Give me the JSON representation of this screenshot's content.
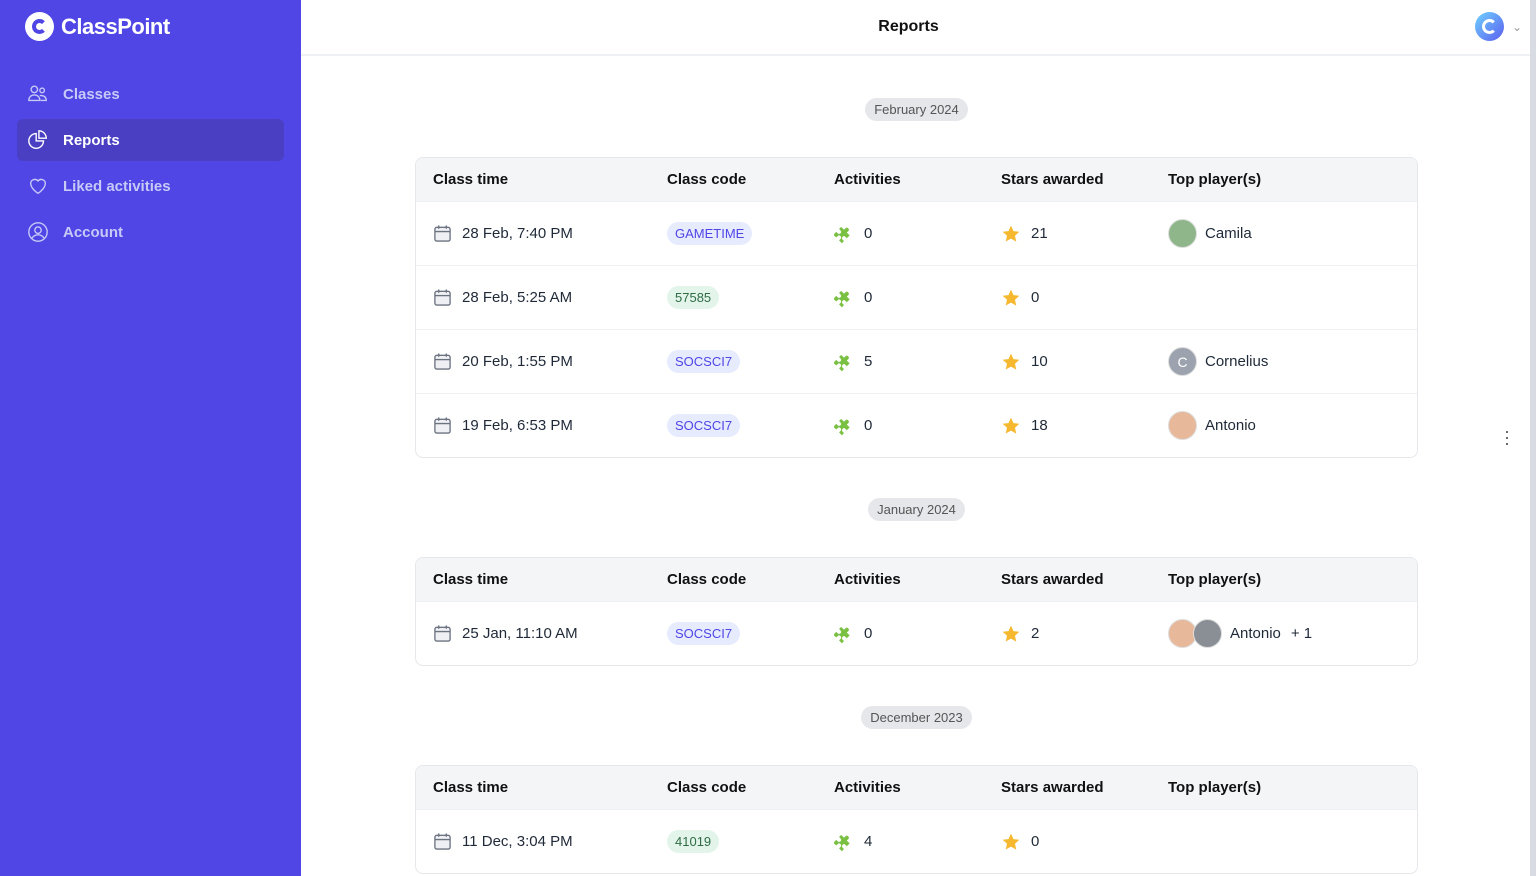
{
  "app": {
    "name": "ClassPoint"
  },
  "sidebar": {
    "items": [
      {
        "label": "Classes",
        "icon": "users-icon",
        "active": false
      },
      {
        "label": "Reports",
        "icon": "pie-chart-icon",
        "active": true
      },
      {
        "label": "Liked activities",
        "icon": "heart-icon",
        "active": false
      },
      {
        "label": "Account",
        "icon": "user-circle-icon",
        "active": false
      }
    ]
  },
  "header": {
    "title": "Reports"
  },
  "colors": {
    "sidebar": "#4f46e5",
    "accent": "#4f46e5",
    "puzzle": "#7ac143",
    "star": "#f5b82e"
  },
  "columns": [
    "Class time",
    "Class code",
    "Activities",
    "Stars awarded",
    "Top player(s)"
  ],
  "sections": [
    {
      "month": "February 2024",
      "rows": [
        {
          "time": "28 Feb, 7:40 PM",
          "code": "GAMETIME",
          "code_color": "blue",
          "activities": "0",
          "stars": "21",
          "players": [
            {
              "name": "Camila",
              "avatar": "photo",
              "color": "#8fb58a"
            }
          ],
          "extra": ""
        },
        {
          "time": "28 Feb, 5:25 AM",
          "code": "57585",
          "code_color": "green",
          "activities": "0",
          "stars": "0",
          "players": [],
          "extra": ""
        },
        {
          "time": "20 Feb, 1:55 PM",
          "code": "SOCSCI7",
          "code_color": "blue",
          "activities": "5",
          "stars": "10",
          "players": [
            {
              "name": "Cornelius",
              "avatar": "C",
              "color": "#9ca3af"
            }
          ],
          "extra": ""
        },
        {
          "time": "19 Feb, 6:53 PM",
          "code": "SOCSCI7",
          "code_color": "blue",
          "activities": "0",
          "stars": "18",
          "players": [
            {
              "name": "Antonio",
              "avatar": "photo",
              "color": "#e8b89a"
            }
          ],
          "extra": ""
        }
      ]
    },
    {
      "month": "January 2024",
      "rows": [
        {
          "time": "25 Jan, 11:10 AM",
          "code": "SOCSCI7",
          "code_color": "blue",
          "activities": "0",
          "stars": "2",
          "players": [
            {
              "name": "Antonio",
              "avatar": "photo",
              "color": "#e8b89a"
            },
            {
              "name": "",
              "avatar": "photo",
              "color": "#8a8f96"
            }
          ],
          "extra": "+ 1"
        }
      ]
    },
    {
      "month": "December 2023",
      "rows": [
        {
          "time": "11 Dec, 3:04 PM",
          "code": "41019",
          "code_color": "green",
          "activities": "4",
          "stars": "0",
          "players": [],
          "extra": ""
        }
      ]
    }
  ]
}
